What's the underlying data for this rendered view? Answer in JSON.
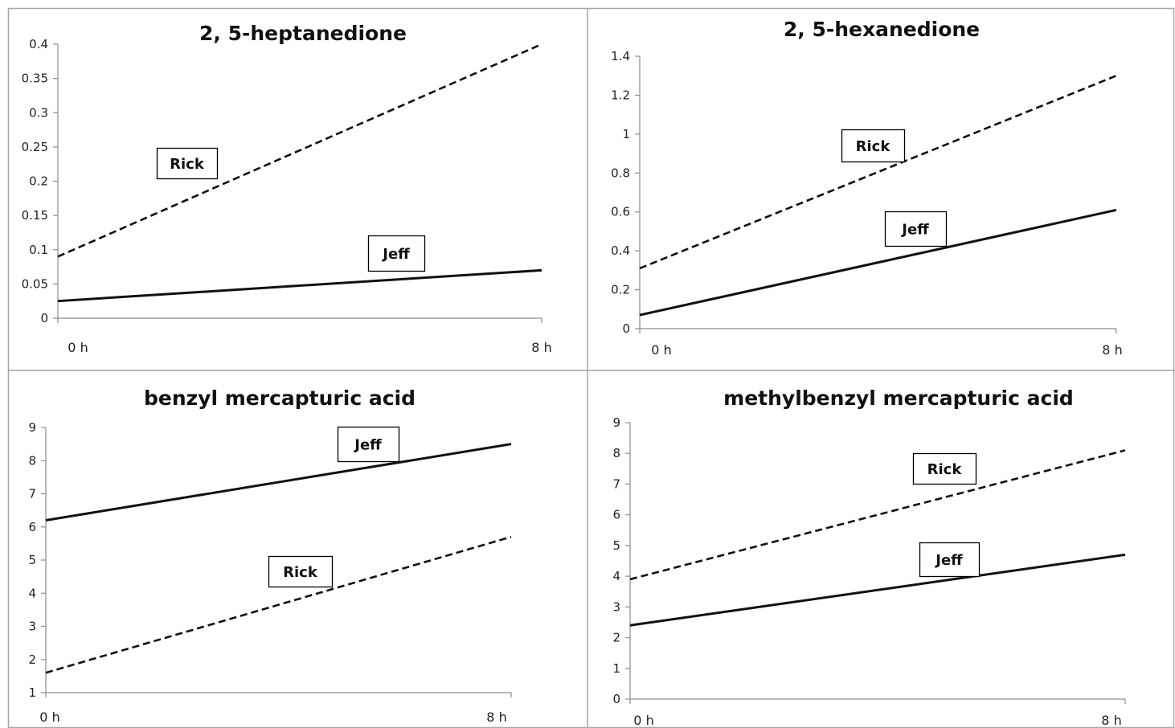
{
  "chart_data": [
    {
      "type": "line",
      "title": "2, 5-heptanedione",
      "categories": [
        "0 h",
        "8 h"
      ],
      "yticks": [
        "0",
        "0.05",
        "0.1",
        "0.15",
        "0.2",
        "0.25",
        "0.3",
        "0.35",
        "0.4"
      ],
      "ylim": [
        0,
        0.4
      ],
      "series": [
        {
          "name": "Rick",
          "style": "dashed",
          "values": [
            0.09,
            0.4
          ]
        },
        {
          "name": "Jeff",
          "style": "solid",
          "values": [
            0.025,
            0.07
          ]
        }
      ]
    },
    {
      "type": "line",
      "title": "2, 5-hexanedione",
      "categories": [
        "0 h",
        "8 h"
      ],
      "yticks": [
        "0",
        "0.2",
        "0.4",
        "0.6",
        "0.8",
        "1",
        "1.2",
        "1.4"
      ],
      "ylim": [
        0,
        1.4
      ],
      "series": [
        {
          "name": "Rick",
          "style": "dashed",
          "values": [
            0.31,
            1.3
          ]
        },
        {
          "name": "Jeff",
          "style": "solid",
          "values": [
            0.07,
            0.61
          ]
        }
      ]
    },
    {
      "type": "line",
      "title": "benzyl mercapturic acid",
      "categories": [
        "0 h",
        "8 h"
      ],
      "yticks": [
        "1",
        "2",
        "3",
        "4",
        "5",
        "6",
        "7",
        "8",
        "9"
      ],
      "ylim": [
        1,
        9
      ],
      "series": [
        {
          "name": "Jeff",
          "style": "solid",
          "values": [
            6.2,
            8.5
          ]
        },
        {
          "name": "Rick",
          "style": "dashed",
          "values": [
            1.6,
            5.7
          ]
        }
      ]
    },
    {
      "type": "line",
      "title": "methylbenzyl mercapturic acid",
      "categories": [
        "0 h",
        "8 h"
      ],
      "yticks": [
        "0",
        "1",
        "2",
        "3",
        "4",
        "5",
        "6",
        "7",
        "8",
        "9"
      ],
      "ylim": [
        0,
        9
      ],
      "series": [
        {
          "name": "Rick",
          "style": "dashed",
          "values": [
            3.9,
            8.1
          ]
        },
        {
          "name": "Jeff",
          "style": "solid",
          "values": [
            2.4,
            4.7
          ]
        }
      ]
    }
  ]
}
